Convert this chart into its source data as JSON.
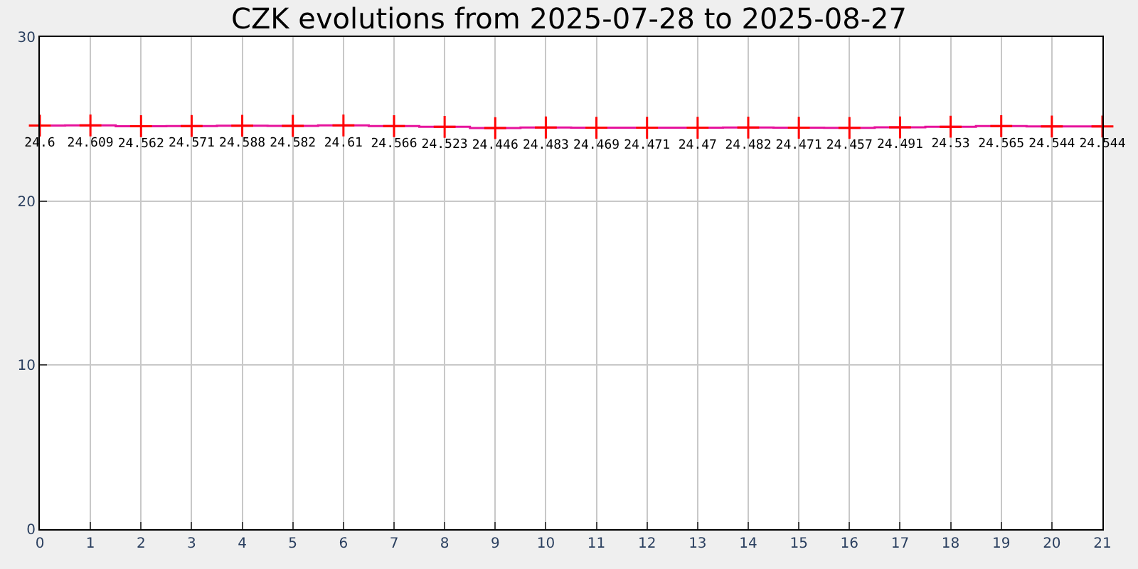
{
  "chart_data": {
    "type": "step",
    "title": "CZK evolutions from 2025-07-28 to 2025-08-27",
    "x": [
      0,
      1,
      2,
      3,
      4,
      5,
      6,
      7,
      8,
      9,
      10,
      11,
      12,
      13,
      14,
      15,
      16,
      17,
      18,
      19,
      20,
      21
    ],
    "series": [
      {
        "color": "#e6139c",
        "marker": "none",
        "values": [
          24.6,
          24.609,
          24.562,
          24.571,
          24.588,
          24.582,
          24.61,
          24.566,
          24.523,
          24.446,
          24.483,
          24.469,
          24.471,
          24.47,
          24.482,
          24.471,
          24.457,
          24.491,
          24.53,
          24.565,
          24.544,
          24.544
        ]
      },
      {
        "type": "scatter",
        "color": "#ff0000",
        "marker": "cross",
        "data_labels": true,
        "values": [
          24.6,
          24.609,
          24.562,
          24.571,
          24.588,
          24.582,
          24.61,
          24.566,
          24.523,
          24.446,
          24.483,
          24.469,
          24.471,
          24.47,
          24.482,
          24.471,
          24.457,
          24.491,
          24.53,
          24.565,
          24.544,
          24.544
        ]
      }
    ],
    "xlim": [
      0,
      21
    ],
    "xticks": [
      0,
      1,
      2,
      3,
      4,
      5,
      6,
      7,
      8,
      9,
      10,
      11,
      12,
      13,
      14,
      15,
      16,
      17,
      18,
      19,
      20,
      21
    ],
    "ylim": [
      0,
      30
    ],
    "yticks": [
      0,
      10,
      20,
      30
    ],
    "grid": true,
    "legend": false
  }
}
